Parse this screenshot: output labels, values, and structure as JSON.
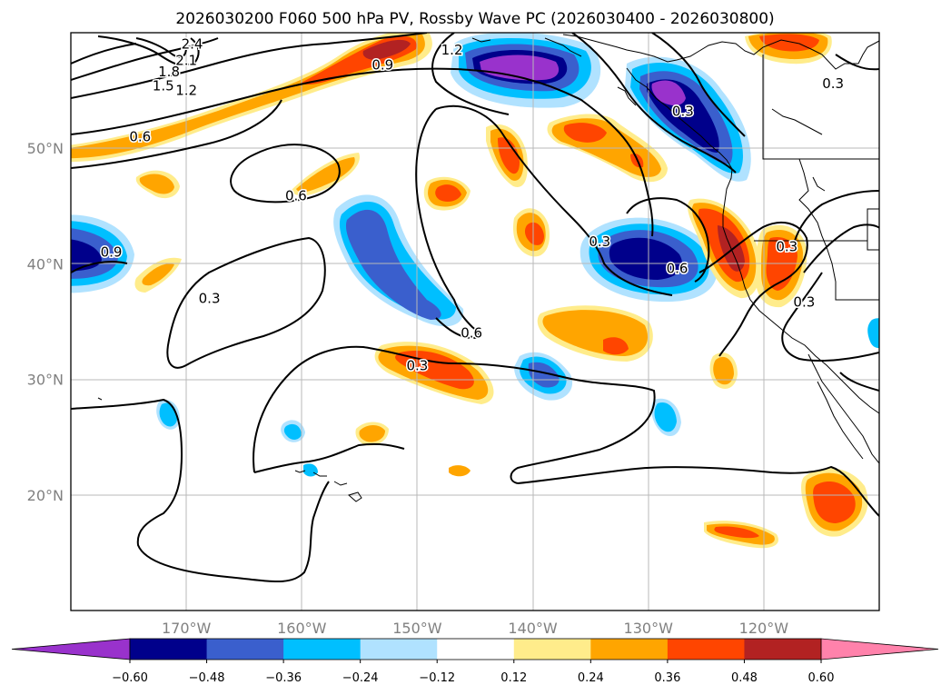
{
  "title": "2026030200 F060 500 hPa PV, Rossby Wave PC (2026030400 - 2026030800)",
  "map": {
    "lon_range": [
      -180,
      -110
    ],
    "lat_range": [
      10,
      60
    ],
    "lon_ticks": [
      {
        "lon": -170,
        "label": "170°W"
      },
      {
        "lon": -160,
        "label": "160°W"
      },
      {
        "lon": -150,
        "label": "150°W"
      },
      {
        "lon": -140,
        "label": "140°W"
      },
      {
        "lon": -130,
        "label": "130°W"
      },
      {
        "lon": -120,
        "label": "120°W"
      }
    ],
    "lat_ticks": [
      {
        "lat": 20,
        "label": "20°N"
      },
      {
        "lat": 30,
        "label": "30°N"
      },
      {
        "lat": 40,
        "label": "40°N"
      },
      {
        "lat": 50,
        "label": "50°N"
      }
    ],
    "contour_labels": [
      {
        "text": "2.4",
        "lon": -169.5,
        "lat": 59.0
      },
      {
        "text": "2.1",
        "lon": -170.0,
        "lat": 57.6
      },
      {
        "text": "1.8",
        "lon": -171.5,
        "lat": 56.6
      },
      {
        "text": "1.5",
        "lon": -172.0,
        "lat": 55.4
      },
      {
        "text": "1.2",
        "lon": -170.0,
        "lat": 55.0
      },
      {
        "text": "1.2",
        "lon": -147.0,
        "lat": 58.5
      },
      {
        "text": "0.9",
        "lon": -153.0,
        "lat": 57.2
      },
      {
        "text": "0.6",
        "lon": -174.0,
        "lat": 51.0
      },
      {
        "text": "0.6",
        "lon": -160.5,
        "lat": 45.9
      },
      {
        "text": "0.9",
        "lon": -176.5,
        "lat": 41.0
      },
      {
        "text": "0.3",
        "lon": -168.0,
        "lat": 37.0
      },
      {
        "text": "0.6",
        "lon": -145.3,
        "lat": 34.0
      },
      {
        "text": "0.3",
        "lon": -150.0,
        "lat": 31.2
      },
      {
        "text": "0.3",
        "lon": -134.2,
        "lat": 41.9
      },
      {
        "text": "0.6",
        "lon": -127.5,
        "lat": 39.6
      },
      {
        "text": "0.3",
        "lon": -118.0,
        "lat": 41.5
      },
      {
        "text": "0.3",
        "lon": -116.5,
        "lat": 36.7
      },
      {
        "text": "0.3",
        "lon": -127.0,
        "lat": 53.2
      },
      {
        "text": "0.3",
        "lon": -114.0,
        "lat": 55.6
      }
    ]
  },
  "colorbar": {
    "levels": [
      -0.6,
      -0.48,
      -0.36,
      -0.24,
      -0.12,
      0.12,
      0.24,
      0.36,
      0.48,
      0.6
    ],
    "tick_labels": [
      "−0.60",
      "−0.48",
      "−0.36",
      "−0.24",
      "−0.12",
      "0.12",
      "0.24",
      "0.36",
      "0.48",
      "0.60"
    ],
    "colors": [
      "#9932cc",
      "#00008b",
      "#3a5fcd",
      "#00bfff",
      "#b0e2ff",
      "#ffffff",
      "#ffec8b",
      "#ffa500",
      "#ff4500",
      "#b22222",
      "#ff82ab"
    ],
    "extend": "both"
  }
}
